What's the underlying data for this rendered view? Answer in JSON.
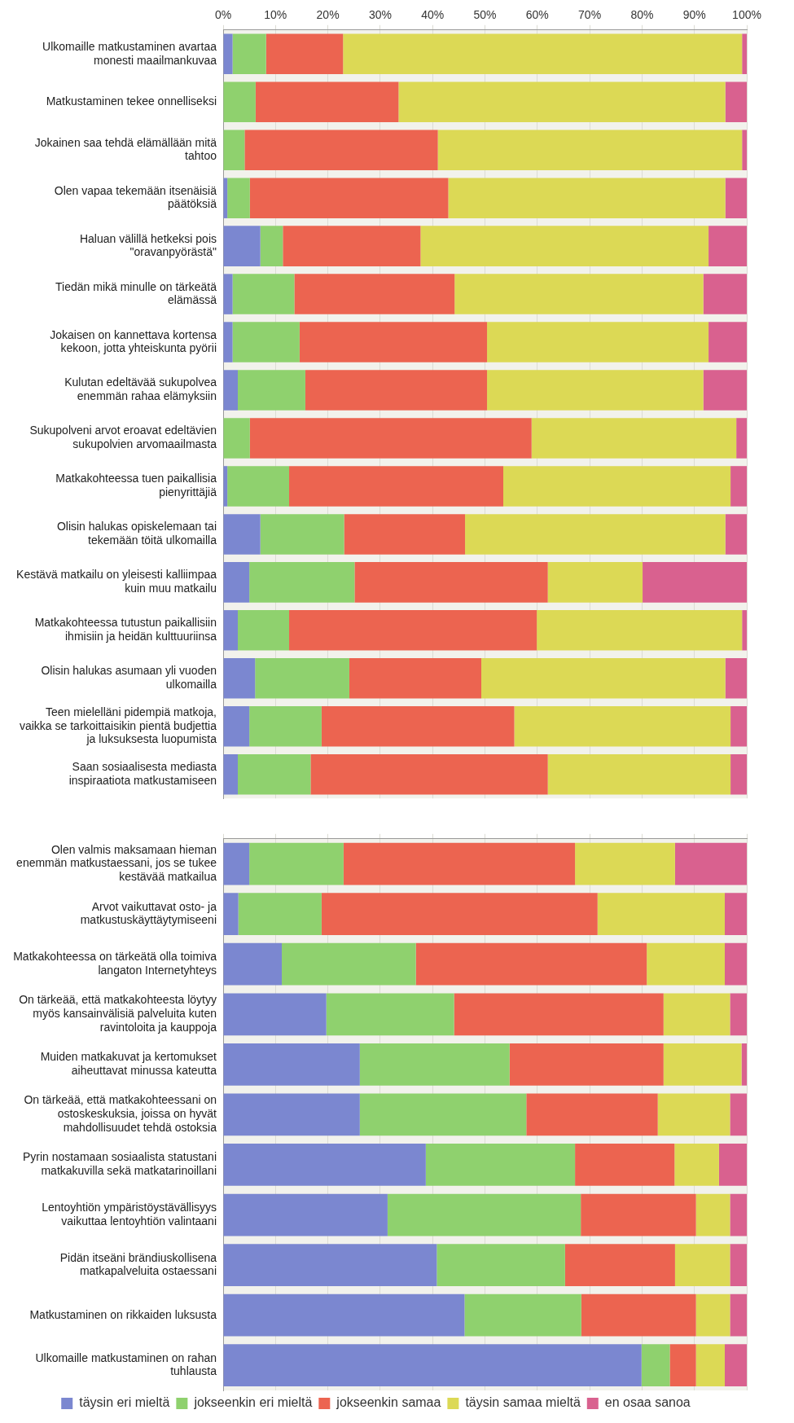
{
  "chart_data": [
    {
      "type": "bar",
      "orientation": "horizontal",
      "stacked": true,
      "grid": "x",
      "legend": false,
      "categories": [
        "Ulkomaille matkustaminen avartaa monesti maailmankuvaa",
        "Matkustaminen tekee onnelliseksi",
        "Jokainen saa tehdä elämällään mitä tahtoo",
        "Olen vapaa tekemään itsenäisiä päätöksiä",
        "Haluan välillä hetkeksi pois \"oravanpyörästä\"",
        "Tiedän mikä minulle on tärkeätä elämässä",
        "Jokaisen on kannettava kortensa kekoon, jotta yhteiskunta pyörii",
        "Kulutan edeltävää sukupolvea enemmän rahaa elämyksiin",
        "Sukupolveni arvot eroavat edeltävien sukupolvien arvomaailmasta",
        "Matkakohteessa tuen paikallisia pienyrittäjiä",
        "Olisin halukas opiskelemaan tai tekemään töitä ulkomailla",
        "Kestävä matkailu on yleisesti kalliimpaa kuin muu matkailu",
        "Matkakohteessa tutustun paikallisiin ihmisiin ja heidän kulttuuriinsa",
        "Olisin halukas asumaan yli vuoden ulkomailla",
        "Teen mielelläni pidempiä matkoja, vaikka se tarkoittaisikin pientä budjettia ja luksuksesta luopumista",
        "Saan sosiaalisesta mediasta inspiraatiota matkustamiseen"
      ],
      "xlim": [
        0,
        100
      ],
      "xticks": [
        {
          "value": 0,
          "label": "0%"
        },
        {
          "value": 10,
          "label": "10%"
        },
        {
          "value": 20,
          "label": "20%"
        },
        {
          "value": 30,
          "label": "30%"
        },
        {
          "value": 40,
          "label": "40%"
        },
        {
          "value": 50,
          "label": "50%"
        },
        {
          "value": 60,
          "label": "60%"
        },
        {
          "value": 70,
          "label": "70%"
        },
        {
          "value": 80,
          "label": "80%"
        },
        {
          "value": 90,
          "label": "90%"
        },
        {
          "value": 100,
          "label": "100%"
        }
      ],
      "series": [
        {
          "color": "#7b87d0",
          "values": [
            1.8,
            0,
            0,
            0.8,
            7.1,
            1.8,
            1.8,
            2.8,
            0,
            0.8,
            7.1,
            5.0,
            2.8,
            6.1,
            5.0,
            2.8
          ]
        },
        {
          "color": "#8fd16e",
          "values": [
            6.4,
            6.2,
            4.1,
            4.3,
            4.3,
            11.8,
            12.8,
            12.9,
            5.1,
            11.8,
            16.0,
            20.1,
            9.8,
            18.0,
            13.8,
            13.9
          ]
        },
        {
          "color": "#ec6450",
          "values": [
            14.7,
            27.3,
            36.9,
            37.9,
            26.3,
            30.6,
            35.8,
            34.7,
            53.8,
            40.9,
            23.1,
            36.9,
            47.3,
            25.2,
            36.8,
            45.3
          ]
        },
        {
          "color": "#dcd955",
          "values": [
            76.2,
            62.4,
            58.1,
            52.9,
            55.0,
            47.5,
            42.3,
            41.3,
            39.1,
            43.4,
            49.7,
            18.1,
            39.2,
            46.6,
            41.3,
            34.9
          ]
        },
        {
          "color": "#d9618f",
          "values": [
            0.9,
            4.1,
            0.9,
            4.1,
            7.3,
            8.3,
            7.3,
            8.3,
            2.0,
            3.1,
            4.1,
            19.9,
            0.9,
            4.1,
            3.1,
            3.1
          ]
        }
      ]
    },
    {
      "type": "bar",
      "orientation": "horizontal",
      "stacked": true,
      "grid": "x",
      "legend": "bottom",
      "tick_labels": "y",
      "categories": [
        "Olen valmis maksamaan hieman enemmän matkustaessani, jos se tukee kestävää matkailua",
        "Arvot vaikuttavat osto- ja matkustuskäyttäytymiseeni",
        "Matkakohteessa on tärkeätä olla toimiva langaton Internetyhteys",
        "On tärkeää, että matkakohteesta löytyy myös kansainvälisiä palveluita kuten ravintoloita ja kauppoja",
        "Muiden matkakuvat ja kertomukset aiheuttavat minussa kateutta",
        "On tärkeää, että matkakohteessani on ostoskeskuksia, joissa on hyvät mahdollisuudet tehdä ostoksia",
        "Pyrin nostamaan sosiaalista statustani matkakuvilla sekä matkatarinoillani",
        "Lentoyhtiön ympäristöystävällisyys vaikuttaa lentoyhtiön valintaani",
        "Pidän itseäni brändiuskollisena matkapalveluita ostaessani",
        "Matkustaminen on rikkaiden luksusta",
        "Ulkomaille matkustaminen on rahan tuhlausta"
      ],
      "xlim": [
        0,
        100
      ],
      "xticks": [
        {
          "value": 0,
          "label": null
        },
        {
          "value": 10,
          "label": null
        },
        {
          "value": 20,
          "label": null
        },
        {
          "value": 30,
          "label": null
        },
        {
          "value": 40,
          "label": null
        },
        {
          "value": 50,
          "label": null
        },
        {
          "value": 60,
          "label": null
        },
        {
          "value": 70,
          "label": null
        },
        {
          "value": 80,
          "label": null
        },
        {
          "value": 90,
          "label": null
        },
        {
          "value": 100,
          "label": null
        }
      ],
      "series": [
        {
          "name": "täysin eri mieltä",
          "color": "#7b87d0",
          "values": [
            5.0,
            2.9,
            11.2,
            19.7,
            26.1,
            26.1,
            38.7,
            31.4,
            40.8,
            46.1,
            79.9
          ]
        },
        {
          "name": "jokseenkin eri mieltä",
          "color": "#8fd16e",
          "values": [
            18.0,
            15.9,
            25.6,
            24.4,
            28.6,
            31.8,
            28.5,
            36.9,
            24.5,
            22.3,
            5.4
          ]
        },
        {
          "name": "jokseenkin samaa",
          "color": "#ec6450",
          "values": [
            44.2,
            52.7,
            44.1,
            40.0,
            29.4,
            25.1,
            19.0,
            22.0,
            21.0,
            21.9,
            5.0
          ]
        },
        {
          "name": "täysin samaa mieltä",
          "color": "#dcd955",
          "values": [
            19.1,
            24.3,
            14.9,
            12.7,
            14.9,
            13.8,
            8.5,
            6.5,
            10.5,
            6.5,
            5.5
          ]
        },
        {
          "name": "en osaa sanoa",
          "color": "#d9618f",
          "values": [
            13.7,
            4.2,
            4.2,
            3.2,
            1.0,
            3.2,
            5.3,
            3.2,
            3.2,
            3.2,
            4.2
          ]
        }
      ]
    }
  ]
}
